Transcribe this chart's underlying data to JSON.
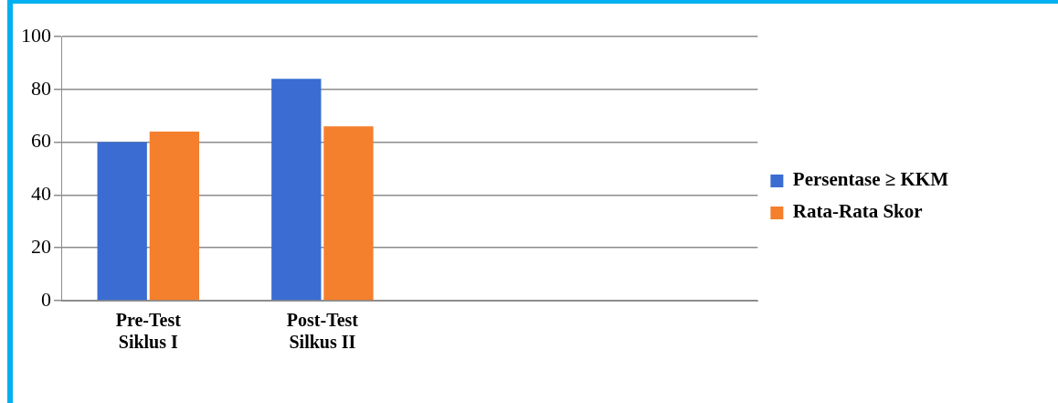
{
  "chart_data": {
    "type": "bar",
    "categories": [
      "Pre-Test Siklus I",
      "Post-Test Silkus II",
      null,
      null
    ],
    "series": [
      {
        "name": "Persentase ≥ KKM",
        "color": "#3a6cd2",
        "values": [
          60,
          84,
          null,
          null
        ]
      },
      {
        "name": "Rata-Rata Skor",
        "color": "#f47f2c",
        "values": [
          64,
          66,
          null,
          null
        ]
      }
    ],
    "ylim": [
      0,
      100
    ],
    "yticks": [
      0,
      20,
      40,
      60,
      80,
      100
    ],
    "grid": "y",
    "legend": "right"
  }
}
